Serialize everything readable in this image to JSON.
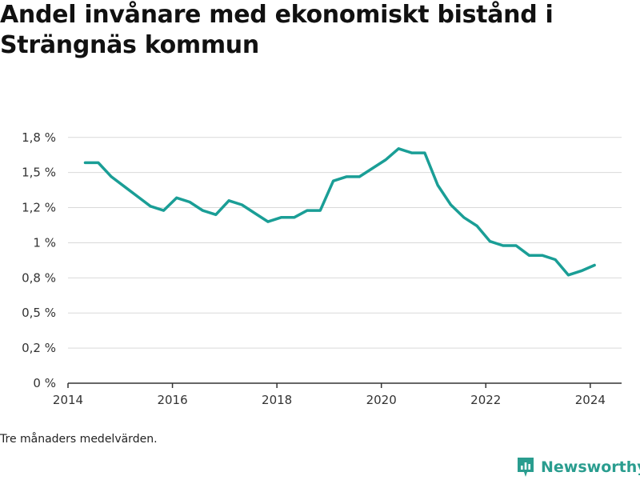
{
  "title": "Andel invånare med ekonomiskt bistånd i Strängnäs kommun",
  "footnote": "Tre månaders medelvärden.",
  "brand": {
    "name": "Newsworthy",
    "icon": "bar-chart-logo-icon",
    "color": "#2a9d8f"
  },
  "colors": {
    "line": "#1a9e96",
    "grid": "#d9d9d9",
    "axis": "#333333"
  },
  "chart_data": {
    "type": "line",
    "xlim": [
      2014,
      2024.6
    ],
    "ylim": [
      0,
      1.8
    ],
    "grid": true,
    "x_ticks": [
      {
        "value": 2014,
        "label": "2014"
      },
      {
        "value": 2016,
        "label": "2016"
      },
      {
        "value": 2018,
        "label": "2018"
      },
      {
        "value": 2020,
        "label": "2020"
      },
      {
        "value": 2022,
        "label": "2022"
      },
      {
        "value": 2024,
        "label": "2024"
      }
    ],
    "y_ticks": [
      {
        "value": 0,
        "label": "0 %"
      },
      {
        "value": 0.25,
        "label": "0,2 %"
      },
      {
        "value": 0.5,
        "label": "0,5 %"
      },
      {
        "value": 0.75,
        "label": "0,8 %"
      },
      {
        "value": 1.0,
        "label": "1 %"
      },
      {
        "value": 1.25,
        "label": "1,2 %"
      },
      {
        "value": 1.5,
        "label": "1,5 %"
      },
      {
        "value": 1.75,
        "label": "1,8 %"
      }
    ],
    "series": [
      {
        "x": [
          2014.33,
          2014.58,
          2014.83,
          2015.08,
          2015.33,
          2015.58,
          2015.83,
          2016.08,
          2016.33,
          2016.58,
          2016.83,
          2017.08,
          2017.33,
          2017.58,
          2017.83,
          2018.08,
          2018.33,
          2018.58,
          2018.83,
          2019.08,
          2019.33,
          2019.58,
          2019.83,
          2020.08,
          2020.33,
          2020.58,
          2020.83,
          2021.08,
          2021.33,
          2021.58,
          2021.83,
          2022.08,
          2022.33,
          2022.58,
          2022.83,
          2023.08,
          2023.33,
          2023.58,
          2023.83,
          2024.08
        ],
        "y": [
          1.57,
          1.57,
          1.47,
          1.4,
          1.33,
          1.26,
          1.23,
          1.32,
          1.29,
          1.23,
          1.2,
          1.3,
          1.27,
          1.21,
          1.15,
          1.18,
          1.18,
          1.23,
          1.23,
          1.44,
          1.47,
          1.47,
          1.53,
          1.59,
          1.67,
          1.64,
          1.64,
          1.41,
          1.27,
          1.18,
          1.12,
          1.01,
          0.98,
          0.98,
          0.91,
          0.91,
          0.88,
          0.77,
          0.8,
          0.84
        ]
      }
    ]
  }
}
